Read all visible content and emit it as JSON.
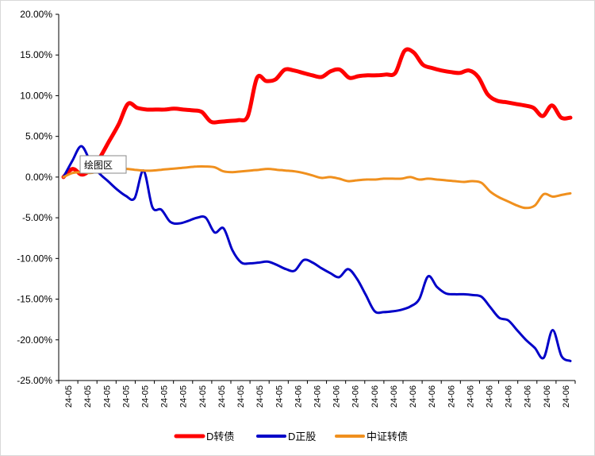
{
  "chart_data": {
    "type": "line",
    "title": "",
    "xlabel": "",
    "ylabel": "",
    "ylim": [
      -25,
      20
    ],
    "y_ticks": [
      "20.00%",
      "15.00%",
      "10.00%",
      "5.00%",
      "0.00%",
      "-5.00%",
      "-10.00%",
      "-15.00%",
      "-20.00%",
      "-25.00%"
    ],
    "y_tick_values": [
      20,
      15,
      10,
      5,
      0,
      -5,
      -10,
      -15,
      -20,
      -25
    ],
    "x_tick_labels": [
      "24-05",
      "24-05",
      "24-05",
      "24-05",
      "24-05",
      "24-05",
      "24-05",
      "24-05",
      "24-05",
      "24-05",
      "24-05",
      "24-05",
      "24-06",
      "24-06",
      "24-06",
      "24-06",
      "24-06",
      "24-06",
      "24-06",
      "24-06",
      "24-06",
      "24-06",
      "24-06",
      "24-06",
      "24-06",
      "24-06",
      "24-06"
    ],
    "grid": false,
    "legend_position": "bottom",
    "series": [
      {
        "name": "D转债",
        "color": "#ff0000",
        "values": [
          0.0,
          1.0,
          0.3,
          1.0,
          2.5,
          4.5,
          6.5,
          9.0,
          8.5,
          8.3,
          8.3,
          8.3,
          8.4,
          8.3,
          8.2,
          8.0,
          6.8,
          6.8,
          6.9,
          7.0,
          7.5,
          12.2,
          11.8,
          12.0,
          13.2,
          13.1,
          12.8,
          12.5,
          12.3,
          13.0,
          13.2,
          12.2,
          12.4,
          12.5,
          12.5,
          12.6,
          12.8,
          15.5,
          15.3,
          13.8,
          13.4,
          13.1,
          12.9,
          12.8,
          13.1,
          12.3,
          10.2,
          9.4,
          9.2,
          9.0,
          8.8,
          8.5,
          7.5,
          8.8,
          7.3,
          7.3
        ]
      },
      {
        "name": "D正股",
        "color": "#0000c8",
        "values": [
          0.0,
          2.0,
          3.8,
          2.0,
          0.5,
          -0.5,
          -1.5,
          -2.3,
          -2.6,
          0.8,
          -3.7,
          -4.0,
          -5.5,
          -5.7,
          -5.4,
          -5.0,
          -5.0,
          -6.8,
          -6.3,
          -9.0,
          -10.5,
          -10.6,
          -10.5,
          -10.4,
          -10.8,
          -11.3,
          -11.5,
          -10.2,
          -10.5,
          -11.2,
          -11.8,
          -12.3,
          -11.3,
          -12.5,
          -14.5,
          -16.5,
          -16.6,
          -16.5,
          -16.3,
          -15.9,
          -15.0,
          -12.2,
          -13.5,
          -14.3,
          -14.4,
          -14.4,
          -14.5,
          -14.7,
          -16.0,
          -17.3,
          -17.6,
          -18.8,
          -20.0,
          -21.0,
          -22.2,
          -18.8,
          -22.0,
          -22.6
        ]
      },
      {
        "name": "中证转债",
        "color": "#f0901e",
        "values": [
          0.0,
          0.5,
          0.6,
          0.5,
          0.7,
          0.8,
          0.9,
          1.0,
          0.9,
          0.8,
          0.8,
          0.9,
          1.0,
          1.1,
          1.2,
          1.3,
          1.3,
          1.2,
          0.7,
          0.6,
          0.7,
          0.8,
          0.9,
          1.0,
          0.9,
          0.8,
          0.7,
          0.5,
          0.2,
          -0.1,
          0.0,
          -0.2,
          -0.5,
          -0.4,
          -0.3,
          -0.3,
          -0.2,
          -0.2,
          -0.2,
          0.0,
          -0.3,
          -0.2,
          -0.3,
          -0.4,
          -0.5,
          -0.6,
          -0.5,
          -0.7,
          -1.8,
          -2.5,
          -3.0,
          -3.5,
          -3.8,
          -3.5,
          -2.1,
          -2.4,
          -2.2,
          -2.0
        ]
      }
    ]
  },
  "tooltip": {
    "label": "绘图区"
  }
}
